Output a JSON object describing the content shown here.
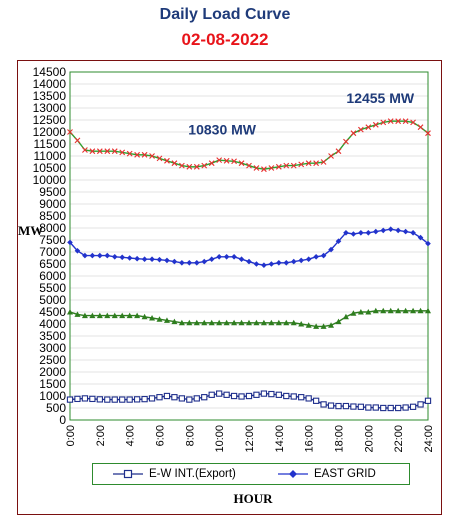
{
  "header": {
    "title": "Daily Load Curve",
    "date": "02-08-2022"
  },
  "colors": {
    "title": "#1f3b7a",
    "date": "#e8141a",
    "frame": "#7a1010",
    "plot_border": "#2e8b2e",
    "grid": "#c8c8c8",
    "ew_int": "#1f2f8c",
    "east_grid": "#2233cc",
    "upper_line": "#2ea02e",
    "upper_marker": "#e83030",
    "lower_line": "#2e7d1e"
  },
  "chart_data": {
    "type": "line",
    "xlabel": "HOUR",
    "ylabel": "MW",
    "ylim": [
      0,
      14500
    ],
    "y_ticks": [
      "0",
      "500",
      "1000",
      "1500",
      "2000",
      "2500",
      "3000",
      "3500",
      "4000",
      "4500",
      "5000",
      "5500",
      "6000",
      "6500",
      "7000",
      "7500",
      "8000",
      "8500",
      "9000",
      "9500",
      "10000",
      "10500",
      "11000",
      "11500",
      "12000",
      "12500",
      "13000",
      "13500",
      "14000",
      "14500"
    ],
    "x_ticks": [
      "0:00",
      "2:00",
      "4:00",
      "6:00",
      "8:00",
      "10:00",
      "12:00",
      "14:00",
      "16:00",
      "18:00",
      "20:00",
      "22:00",
      "24:00"
    ],
    "xlim": [
      0,
      24
    ],
    "annotations": [
      {
        "text": "10830 MW",
        "x": 10.2,
        "y": 11900
      },
      {
        "text": "12455 MW",
        "x": 20.8,
        "y": 13200
      }
    ],
    "legend": [
      {
        "name": "E-W INT.(Export)",
        "marker": "square"
      },
      {
        "name": "EAST GRID",
        "marker": "diamond"
      }
    ],
    "x": [
      0,
      0.5,
      1,
      1.5,
      2,
      2.5,
      3,
      3.5,
      4,
      4.5,
      5,
      5.5,
      6,
      6.5,
      7,
      7.5,
      8,
      8.5,
      9,
      9.5,
      10,
      10.5,
      11,
      11.5,
      12,
      12.5,
      13,
      13.5,
      14,
      14.5,
      15,
      15.5,
      16,
      16.5,
      17,
      17.5,
      18,
      18.5,
      19,
      19.5,
      20,
      20.5,
      21,
      21.5,
      22,
      22.5,
      23,
      23.5,
      24
    ],
    "series": [
      {
        "marker": "x",
        "values": [
          12000,
          11650,
          11250,
          11200,
          11200,
          11200,
          11200,
          11150,
          11100,
          11050,
          11050,
          11000,
          10900,
          10800,
          10700,
          10600,
          10550,
          10550,
          10600,
          10700,
          10830,
          10800,
          10780,
          10700,
          10600,
          10500,
          10450,
          10500,
          10550,
          10600,
          10600,
          10650,
          10700,
          10700,
          10750,
          11000,
          11200,
          11600,
          11950,
          12100,
          12200,
          12300,
          12400,
          12455,
          12450,
          12450,
          12400,
          12200,
          11950
        ]
      },
      {
        "name": "EAST GRID",
        "marker": "diamond",
        "values": [
          7400,
          7050,
          6850,
          6850,
          6850,
          6850,
          6800,
          6780,
          6750,
          6720,
          6700,
          6700,
          6680,
          6650,
          6600,
          6550,
          6550,
          6550,
          6600,
          6700,
          6800,
          6800,
          6800,
          6700,
          6600,
          6500,
          6450,
          6500,
          6550,
          6550,
          6600,
          6650,
          6700,
          6800,
          6850,
          7100,
          7450,
          7800,
          7750,
          7800,
          7800,
          7850,
          7900,
          7950,
          7900,
          7850,
          7800,
          7600,
          7350
        ]
      },
      {
        "marker": "triangle",
        "values": [
          4500,
          4400,
          4350,
          4350,
          4350,
          4350,
          4350,
          4350,
          4350,
          4350,
          4300,
          4250,
          4200,
          4150,
          4100,
          4050,
          4050,
          4050,
          4050,
          4050,
          4050,
          4050,
          4050,
          4050,
          4050,
          4050,
          4050,
          4050,
          4050,
          4050,
          4050,
          4000,
          3950,
          3900,
          3900,
          3950,
          4100,
          4300,
          4450,
          4500,
          4500,
          4550,
          4550,
          4550,
          4550,
          4550,
          4550,
          4550,
          4550
        ]
      },
      {
        "name": "E-W INT.(Export)",
        "marker": "square",
        "values": [
          850,
          880,
          900,
          880,
          860,
          850,
          850,
          850,
          850,
          860,
          870,
          900,
          950,
          1000,
          950,
          900,
          850,
          900,
          950,
          1050,
          1100,
          1050,
          1000,
          980,
          1000,
          1050,
          1100,
          1080,
          1050,
          1000,
          980,
          950,
          900,
          800,
          650,
          600,
          580,
          580,
          560,
          550,
          520,
          520,
          500,
          500,
          500,
          520,
          550,
          650,
          800
        ]
      }
    ]
  }
}
